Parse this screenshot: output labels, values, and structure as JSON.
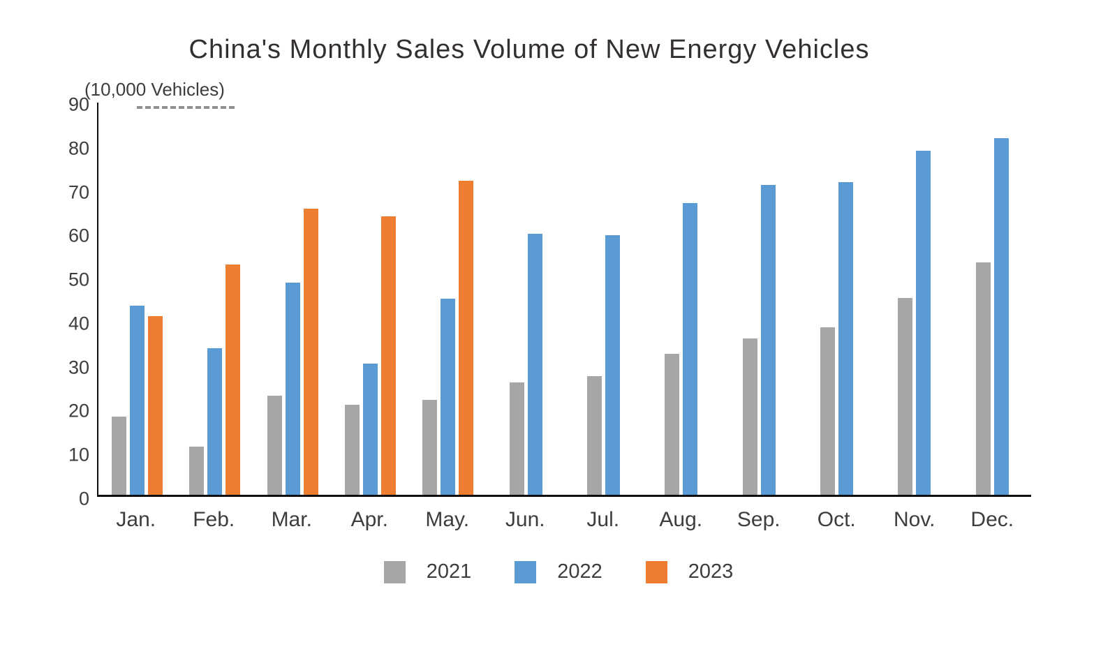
{
  "page": {
    "title": "China's Monthly Sales Volume of New Energy Vehicles",
    "unit_label": "(10,000 Vehicles)"
  },
  "chart_data": {
    "type": "bar",
    "title": "China's Monthly Sales Volume of New Energy Vehicles",
    "ylabel": "(10,000 Vehicles)",
    "categories": [
      "Jan.",
      "Feb.",
      "Mar.",
      "Apr.",
      "May.",
      "Jun.",
      "Jul.",
      "Aug.",
      "Sep.",
      "Oct.",
      "Nov.",
      "Dec."
    ],
    "series": [
      {
        "name": "2021",
        "color": "#a6a6a6",
        "values": [
          17.9,
          11.0,
          22.6,
          20.6,
          21.7,
          25.6,
          27.1,
          32.1,
          35.7,
          38.3,
          45.0,
          53.1
        ]
      },
      {
        "name": "2022",
        "color": "#5b9bd5",
        "values": [
          43.1,
          33.4,
          48.4,
          29.9,
          44.7,
          59.6,
          59.3,
          66.6,
          70.8,
          71.4,
          78.6,
          81.4
        ]
      },
      {
        "name": "2023",
        "color": "#ed7d31",
        "values": [
          40.8,
          52.5,
          65.3,
          63.6,
          71.7,
          null,
          null,
          null,
          null,
          null,
          null,
          null
        ]
      }
    ],
    "ylim": [
      0,
      90
    ],
    "yticks": [
      0,
      10,
      20,
      30,
      40,
      50,
      60,
      70,
      80,
      90
    ],
    "grid": false,
    "legend_position": "bottom",
    "axis_color": "#0d0d0d",
    "text_color": "#3d3d3d"
  }
}
